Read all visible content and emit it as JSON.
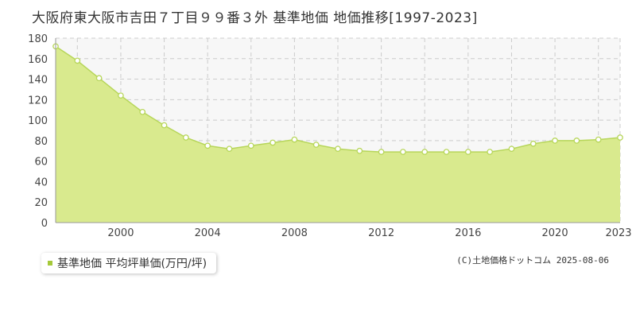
{
  "title": "大阪府東大阪市吉田７丁目９９番３外  基準地価  地価推移[1997-2023]",
  "legend": {
    "label": "基準地価 平均坪単価(万円/坪)"
  },
  "copyright": "(C)土地価格ドットコム 2025-08-06",
  "colors": {
    "fill": "#d9ea8e",
    "line": "#b7d65a",
    "marker_stroke": "#b7d65a",
    "marker_fill": "#ffffff",
    "legend_swatch": "#a5c93a",
    "grid": "#cccccc",
    "plot_bg": "#f7f7f7"
  },
  "chart_data": {
    "type": "area",
    "title": "",
    "xlabel": "",
    "ylabel": "",
    "x": [
      1997,
      1998,
      1999,
      2000,
      2001,
      2002,
      2003,
      2004,
      2005,
      2006,
      2007,
      2008,
      2009,
      2010,
      2011,
      2012,
      2013,
      2014,
      2015,
      2016,
      2017,
      2018,
      2019,
      2020,
      2021,
      2022,
      2023
    ],
    "series": [
      {
        "name": "基準地価 平均坪単価(万円/坪)",
        "values": [
          172,
          158,
          141,
          124,
          108,
          95,
          83,
          75,
          72,
          75,
          78,
          81,
          76,
          72,
          70,
          69,
          69,
          69,
          69,
          69,
          69,
          72,
          77,
          80,
          80,
          81,
          83
        ]
      }
    ],
    "xlim": [
      1997,
      2023
    ],
    "ylim": [
      0,
      180
    ],
    "x_ticks": [
      2000,
      2004,
      2008,
      2012,
      2016,
      2020,
      2023
    ],
    "y_ticks": [
      0,
      20,
      40,
      60,
      80,
      100,
      120,
      140,
      160,
      180
    ],
    "grid": true,
    "legend_position": "bottom-left"
  }
}
